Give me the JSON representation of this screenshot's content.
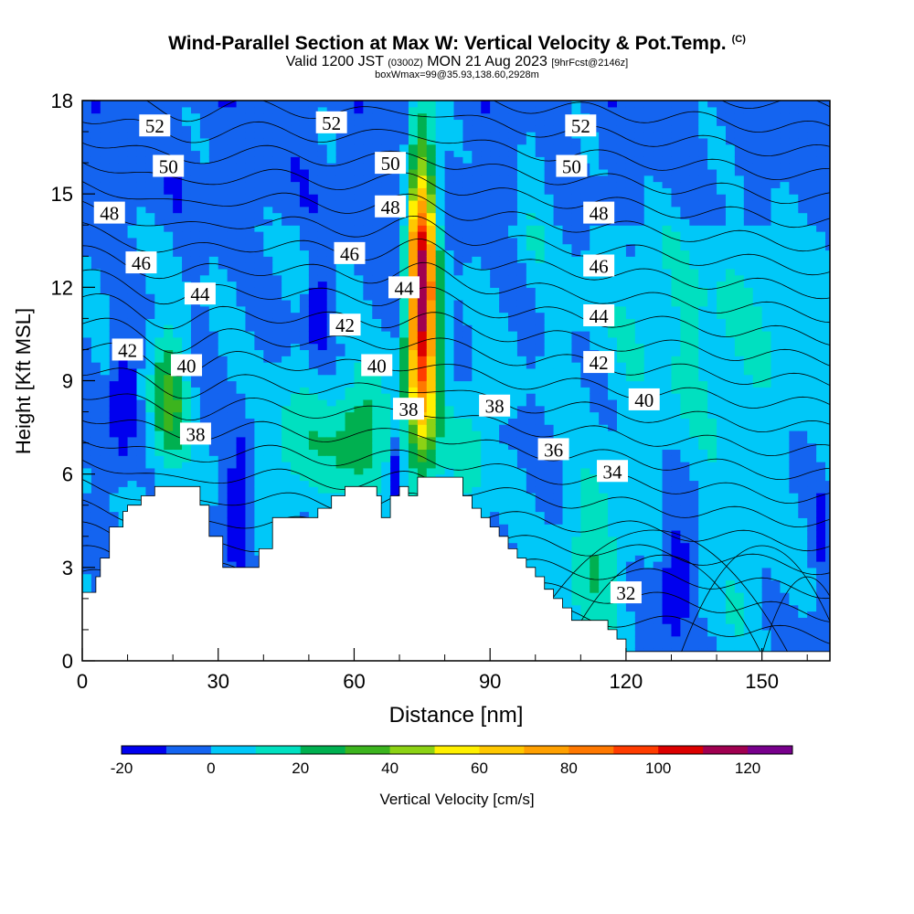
{
  "header": {
    "title": "Wind-Parallel Section at Max W: Vertical Velocity & Pot.Temp.",
    "copyright": "(C)",
    "valid_prefix": "Valid 1200 JST",
    "valid_utc": "(0300Z)",
    "valid_date": "MON 21 Aug 2023",
    "forecast": "[9hrFcst@2146z]",
    "box_info": "boxWmax=99@35.93,138.60,2928m"
  },
  "chart_data": {
    "type": "heatmap",
    "xlabel": "Distance [nm]",
    "ylabel": "Height [Kft MSL]",
    "xlim": [
      0,
      165
    ],
    "ylim": [
      0,
      18
    ],
    "x_ticks": [
      0,
      30,
      60,
      90,
      120,
      150
    ],
    "y_ticks": [
      0,
      3,
      6,
      9,
      12,
      15,
      18
    ],
    "colorbar": {
      "label": "Vertical Velocity [cm/s]",
      "ticks": [
        -20,
        0,
        20,
        40,
        60,
        80,
        100,
        120
      ],
      "levels": [
        -20,
        -10,
        0,
        10,
        20,
        30,
        40,
        50,
        60,
        70,
        80,
        90,
        100,
        110,
        120,
        130
      ],
      "colors": [
        "#0000ee",
        "#1464f0",
        "#00c8f8",
        "#00e0c0",
        "#00b050",
        "#3cb41e",
        "#8cd214",
        "#fff000",
        "#ffc800",
        "#ffa000",
        "#ff7800",
        "#ff3c00",
        "#dc0000",
        "#a00050",
        "#78008c"
      ]
    },
    "terrain": [
      [
        0,
        2.2
      ],
      [
        3,
        2.2
      ],
      [
        3,
        2.7
      ],
      [
        4,
        2.7
      ],
      [
        4,
        3.3
      ],
      [
        6,
        3.3
      ],
      [
        6,
        4.3
      ],
      [
        9,
        4.3
      ],
      [
        9,
        4.8
      ],
      [
        10,
        4.8
      ],
      [
        10,
        5.0
      ],
      [
        13,
        5.0
      ],
      [
        13,
        5.3
      ],
      [
        16,
        5.3
      ],
      [
        16,
        5.6
      ],
      [
        26,
        5.6
      ],
      [
        26,
        5.0
      ],
      [
        28,
        5.0
      ],
      [
        28,
        4.0
      ],
      [
        31,
        4.0
      ],
      [
        31,
        3.0
      ],
      [
        39,
        3.0
      ],
      [
        39,
        3.6
      ],
      [
        42,
        3.6
      ],
      [
        42,
        4.6
      ],
      [
        52,
        4.6
      ],
      [
        52,
        4.9
      ],
      [
        55,
        4.9
      ],
      [
        55,
        5.3
      ],
      [
        58,
        5.3
      ],
      [
        58,
        5.6
      ],
      [
        65,
        5.6
      ],
      [
        65,
        5.3
      ],
      [
        66,
        5.3
      ],
      [
        66,
        4.6
      ],
      [
        68,
        4.6
      ],
      [
        68,
        5.3
      ],
      [
        70,
        5.3
      ],
      [
        70,
        5.6
      ],
      [
        72,
        5.6
      ],
      [
        72,
        5.3
      ],
      [
        74,
        5.3
      ],
      [
        74,
        5.9
      ],
      [
        84,
        5.9
      ],
      [
        84,
        5.3
      ],
      [
        86,
        5.3
      ],
      [
        86,
        4.9
      ],
      [
        88,
        4.9
      ],
      [
        88,
        4.6
      ],
      [
        90,
        4.6
      ],
      [
        90,
        4.3
      ],
      [
        92,
        4.3
      ],
      [
        92,
        4.0
      ],
      [
        94,
        4.0
      ],
      [
        94,
        3.6
      ],
      [
        96,
        3.6
      ],
      [
        96,
        3.3
      ],
      [
        98,
        3.3
      ],
      [
        98,
        3.0
      ],
      [
        100,
        3.0
      ],
      [
        100,
        2.7
      ],
      [
        102,
        2.7
      ],
      [
        102,
        2.3
      ],
      [
        104,
        2.3
      ],
      [
        104,
        2.0
      ],
      [
        106,
        2.0
      ],
      [
        106,
        1.7
      ],
      [
        108,
        1.7
      ],
      [
        108,
        1.3
      ],
      [
        116,
        1.3
      ],
      [
        116,
        1.0
      ],
      [
        118,
        1.0
      ],
      [
        118,
        0.7
      ],
      [
        120,
        0.7
      ],
      [
        120,
        0.3
      ],
      [
        124,
        0.3
      ],
      [
        124,
        0.3
      ],
      [
        165,
        0.3
      ]
    ],
    "contour_labels": [
      {
        "text": "52",
        "x": 16,
        "y": 17.2
      },
      {
        "text": "52",
        "x": 55,
        "y": 17.3
      },
      {
        "text": "52",
        "x": 110,
        "y": 17.2
      },
      {
        "text": "50",
        "x": 19,
        "y": 15.9
      },
      {
        "text": "50",
        "x": 68,
        "y": 16.0
      },
      {
        "text": "50",
        "x": 108,
        "y": 15.9
      },
      {
        "text": "48",
        "x": 6,
        "y": 14.4
      },
      {
        "text": "48",
        "x": 68,
        "y": 14.6
      },
      {
        "text": "48",
        "x": 114,
        "y": 14.4
      },
      {
        "text": "46",
        "x": 13,
        "y": 12.8
      },
      {
        "text": "46",
        "x": 59,
        "y": 13.1
      },
      {
        "text": "46",
        "x": 114,
        "y": 12.7
      },
      {
        "text": "44",
        "x": 26,
        "y": 11.8
      },
      {
        "text": "44",
        "x": 71,
        "y": 12.0
      },
      {
        "text": "44",
        "x": 114,
        "y": 11.1
      },
      {
        "text": "42",
        "x": 10,
        "y": 10.0
      },
      {
        "text": "42",
        "x": 58,
        "y": 10.8
      },
      {
        "text": "42",
        "x": 114,
        "y": 9.6
      },
      {
        "text": "40",
        "x": 23,
        "y": 9.5
      },
      {
        "text": "40",
        "x": 65,
        "y": 9.5
      },
      {
        "text": "40",
        "x": 124,
        "y": 8.4
      },
      {
        "text": "38",
        "x": 25,
        "y": 7.3
      },
      {
        "text": "38",
        "x": 72,
        "y": 8.1
      },
      {
        "text": "38",
        "x": 91,
        "y": 8.2
      },
      {
        "text": "36",
        "x": 104,
        "y": 6.8
      },
      {
        "text": "34",
        "x": 117,
        "y": 6.1
      },
      {
        "text": "32",
        "x": 120,
        "y": 2.2
      }
    ],
    "isentropes": [
      52,
      50,
      48,
      46,
      44,
      42,
      40,
      38,
      36,
      34,
      32
    ],
    "max_updraft": {
      "x": 75,
      "y": 12.2,
      "value": 99
    }
  }
}
